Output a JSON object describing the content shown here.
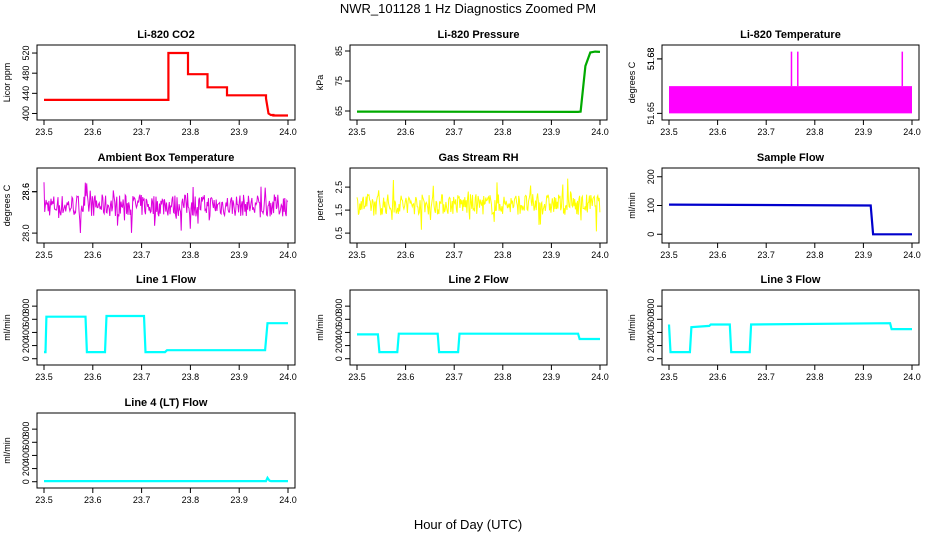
{
  "page": {
    "title": "NWR_101128  1 Hz Diagnostics Zoomed PM",
    "xlabel": "Hour of Day (UTC)"
  },
  "chart_data": [
    {
      "type": "line",
      "title": "Li-820 CO2",
      "ylabel": "Licor ppm",
      "color": "#ff0000",
      "xlim": [
        23.5,
        24.0
      ],
      "ylim": [
        393,
        530
      ],
      "xticks": [
        "23.5",
        "23.6",
        "23.7",
        "23.8",
        "23.9",
        "24.0"
      ],
      "yticks": [
        400,
        440,
        480,
        520
      ],
      "series": [
        {
          "x": [
            23.5,
            23.755,
            23.755,
            23.795,
            23.795,
            23.835,
            23.835,
            23.875,
            23.875,
            23.955,
            23.955,
            23.96,
            23.965,
            23.97,
            23.97,
            24.0
          ],
          "y": [
            427,
            427,
            520,
            520,
            478,
            478,
            452,
            452,
            436,
            436,
            430,
            400,
            397,
            397,
            396,
            396
          ]
        }
      ]
    },
    {
      "type": "line",
      "title": "Li-820 Pressure",
      "ylabel": "kPa",
      "color": "#00aa00",
      "xlim": [
        23.5,
        24.0
      ],
      "ylim": [
        63,
        86
      ],
      "xticks": [
        "23.5",
        "23.6",
        "23.7",
        "23.8",
        "23.9",
        "24.0"
      ],
      "yticks": [
        65,
        75,
        85
      ],
      "series": [
        {
          "x": [
            23.5,
            23.955,
            23.96,
            23.97,
            23.98,
            23.99,
            24.0
          ],
          "y": [
            64.8,
            64.7,
            64.8,
            80,
            84.5,
            84.8,
            84.7
          ]
        }
      ]
    },
    {
      "type": "line",
      "title": "Li-820 Temperature",
      "ylabel": "degrees C",
      "color": "#ff00ff",
      "xlim": [
        23.5,
        24.0
      ],
      "ylim": [
        51.648,
        51.686
      ],
      "xticks": [
        "23.5",
        "23.6",
        "23.7",
        "23.8",
        "23.9",
        "24.0"
      ],
      "yticks": [
        "51.65",
        "51.68",
        "51.68"
      ],
      "band": {
        "from": 51.65,
        "to": 51.665
      },
      "spikes": [
        {
          "x": 23.752,
          "to": 51.684
        },
        {
          "x": 23.765,
          "to": 51.684
        },
        {
          "x": 23.98,
          "to": 51.684
        }
      ]
    },
    {
      "type": "line",
      "title": "Ambient Box Temperature",
      "ylabel": "degrees C",
      "color": "#dd00dd",
      "xlim": [
        23.5,
        24.0
      ],
      "ylim": [
        27.9,
        28.9
      ],
      "xticks": [
        "23.5",
        "23.6",
        "23.7",
        "23.8",
        "23.9",
        "24.0"
      ],
      "yticks": [
        "28.0",
        "28.6",
        "28.6"
      ],
      "noise": {
        "center": 28.4,
        "core": 0.16,
        "spike": 0.4
      }
    },
    {
      "type": "line",
      "title": "Gas Stream RH",
      "ylabel": "percent",
      "color": "#ffff00",
      "xlim": [
        23.5,
        24.0
      ],
      "ylim": [
        0.2,
        3.2
      ],
      "xticks": [
        "23.5",
        "23.6",
        "23.7",
        "23.8",
        "23.9",
        "24.0"
      ],
      "yticks": [
        "0.5",
        "1.5",
        "2.5"
      ],
      "noise": {
        "center": 1.75,
        "core": 0.45,
        "spike": 1.2
      }
    },
    {
      "type": "line",
      "title": "Sample Flow",
      "ylabel": "ml/min",
      "color": "#0000cc",
      "xlim": [
        23.5,
        24.0
      ],
      "ylim": [
        -20,
        220
      ],
      "xticks": [
        "23.5",
        "23.6",
        "23.7",
        "23.8",
        "23.9",
        "24.0"
      ],
      "yticks": [
        0,
        100,
        200
      ],
      "series": [
        {
          "x": [
            23.5,
            23.915,
            23.92,
            24.0
          ],
          "y": [
            103,
            100,
            0,
            0
          ]
        }
      ]
    },
    {
      "type": "line",
      "title": "Line 1 Flow",
      "ylabel": "ml/min",
      "color": "#00ffff",
      "xlim": [
        23.5,
        24.0
      ],
      "ylim": [
        -50,
        1000
      ],
      "xticks": [
        "23.5",
        "23.6",
        "23.7",
        "23.8",
        "23.9",
        "24.0"
      ],
      "yticks": [
        0,
        200,
        400,
        600,
        800
      ],
      "series": [
        {
          "x": [
            23.5,
            23.503,
            23.505,
            23.585,
            23.588,
            23.625,
            23.628,
            23.705,
            23.708,
            23.748,
            23.752,
            23.953,
            23.958,
            24.0
          ],
          "y": [
            100,
            100,
            640,
            640,
            100,
            100,
            650,
            650,
            100,
            100,
            130,
            130,
            540,
            540
          ]
        }
      ]
    },
    {
      "type": "line",
      "title": "Line 2 Flow",
      "ylabel": "ml/min",
      "color": "#00ffff",
      "xlim": [
        23.5,
        24.0
      ],
      "ylim": [
        -50,
        1000
      ],
      "xticks": [
        "23.5",
        "23.6",
        "23.7",
        "23.8",
        "23.9",
        "24.0"
      ],
      "yticks": [
        0,
        200,
        400,
        600,
        800
      ],
      "series": [
        {
          "x": [
            23.5,
            23.543,
            23.546,
            23.583,
            23.586,
            23.666,
            23.669,
            23.708,
            23.711,
            23.955,
            23.958,
            24.0
          ],
          "y": [
            370,
            370,
            100,
            100,
            380,
            380,
            100,
            100,
            380,
            380,
            300,
            300
          ]
        }
      ]
    },
    {
      "type": "line",
      "title": "Line 3 Flow",
      "ylabel": "ml/min",
      "color": "#00ffff",
      "xlim": [
        23.5,
        24.0
      ],
      "ylim": [
        -50,
        1000
      ],
      "xticks": [
        "23.5",
        "23.6",
        "23.7",
        "23.8",
        "23.9",
        "24.0"
      ],
      "yticks": [
        0,
        200,
        400,
        600,
        800
      ],
      "series": [
        {
          "x": [
            23.5,
            23.503,
            23.505,
            23.543,
            23.546,
            23.583,
            23.586,
            23.625,
            23.628,
            23.666,
            23.669,
            23.955,
            23.958,
            24.0
          ],
          "y": [
            520,
            100,
            100,
            100,
            480,
            500,
            520,
            520,
            100,
            100,
            520,
            540,
            450,
            450
          ]
        }
      ]
    },
    {
      "type": "line",
      "title": "Line 4 (LT) Flow",
      "ylabel": "ml/min",
      "color": "#00ffff",
      "xlim": [
        23.5,
        24.0
      ],
      "ylim": [
        -50,
        1000
      ],
      "xticks": [
        "23.5",
        "23.6",
        "23.7",
        "23.8",
        "23.9",
        "24.0"
      ],
      "yticks": [
        0,
        200,
        400,
        600,
        800
      ],
      "series": [
        {
          "x": [
            23.5,
            23.955,
            23.958,
            23.962,
            23.965,
            24.0
          ],
          "y": [
            10,
            10,
            60,
            15,
            10,
            10
          ]
        }
      ]
    }
  ]
}
